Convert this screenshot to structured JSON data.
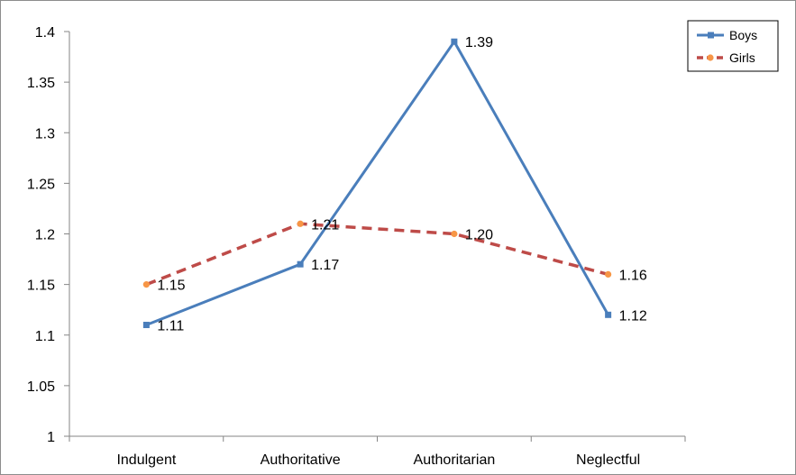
{
  "chart_data": {
    "type": "line",
    "title": "",
    "xlabel": "",
    "ylabel": "",
    "categories": [
      "Indulgent",
      "Authoritative",
      "Authoritarian",
      "Neglectful"
    ],
    "ylim": [
      1,
      1.4
    ],
    "yticks": [
      1,
      1.05,
      1.1,
      1.15,
      1.2,
      1.25,
      1.3,
      1.35,
      1.4
    ],
    "ytick_labels": [
      "1",
      "1.05",
      "1.1",
      "1.15",
      "1.2",
      "1.25",
      "1.3",
      "1.35",
      "1.4"
    ],
    "grid": false,
    "legend_position": "top-right",
    "series": [
      {
        "name": "Boys",
        "values": [
          1.11,
          1.17,
          1.39,
          1.12
        ],
        "labels": [
          "1.11",
          "1.17",
          "1.39",
          "1.12"
        ],
        "color": "#4a7ebb",
        "line_style": "solid",
        "marker": "square"
      },
      {
        "name": "Girls",
        "values": [
          1.15,
          1.21,
          1.2,
          1.16
        ],
        "labels": [
          "1.15",
          "1.21",
          "1.20",
          "1.16"
        ],
        "color": "#be4b48",
        "marker_color": "#f79646",
        "line_style": "dashed",
        "marker": "circle"
      }
    ]
  }
}
